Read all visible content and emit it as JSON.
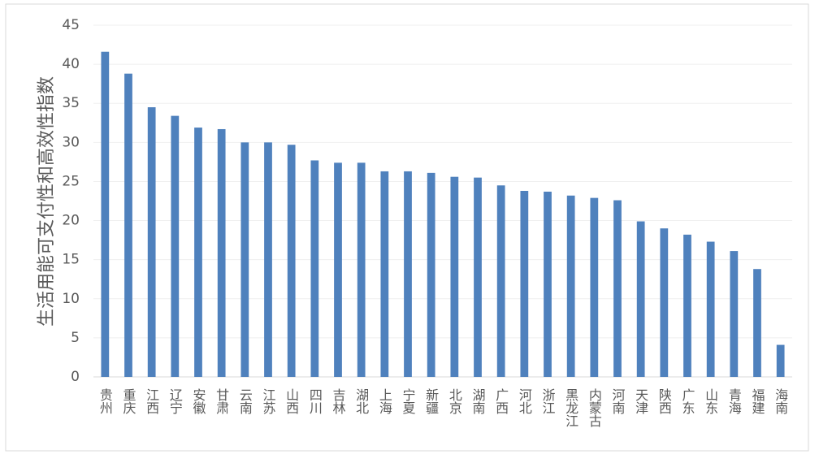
{
  "chart_data": {
    "type": "bar",
    "y_label": "生活用能可支付性和高效性指数",
    "categories": [
      "贵州",
      "重庆",
      "江西",
      "辽宁",
      "安徽",
      "甘肃",
      "云南",
      "江苏",
      "山西",
      "四川",
      "吉林",
      "湖北",
      "上海",
      "宁夏",
      "新疆",
      "北京",
      "湖南",
      "广西",
      "河北",
      "浙江",
      "黑龙江",
      "内蒙古",
      "河南",
      "天津",
      "陕西",
      "广东",
      "山东",
      "青海",
      "福建",
      "海南"
    ],
    "values": [
      41.6,
      38.8,
      34.5,
      33.4,
      31.9,
      31.7,
      30.0,
      30.0,
      29.7,
      27.7,
      27.4,
      27.4,
      26.3,
      26.3,
      26.1,
      25.6,
      25.5,
      24.5,
      23.8,
      23.7,
      23.2,
      22.9,
      22.6,
      19.9,
      19.0,
      18.2,
      17.3,
      16.1,
      13.8,
      4.1
    ],
    "color": "#4f81bd",
    "ylim": [
      0,
      45
    ],
    "yticks": [
      0,
      5,
      10,
      15,
      20,
      25,
      30,
      35,
      40,
      45
    ],
    "grid": true
  }
}
